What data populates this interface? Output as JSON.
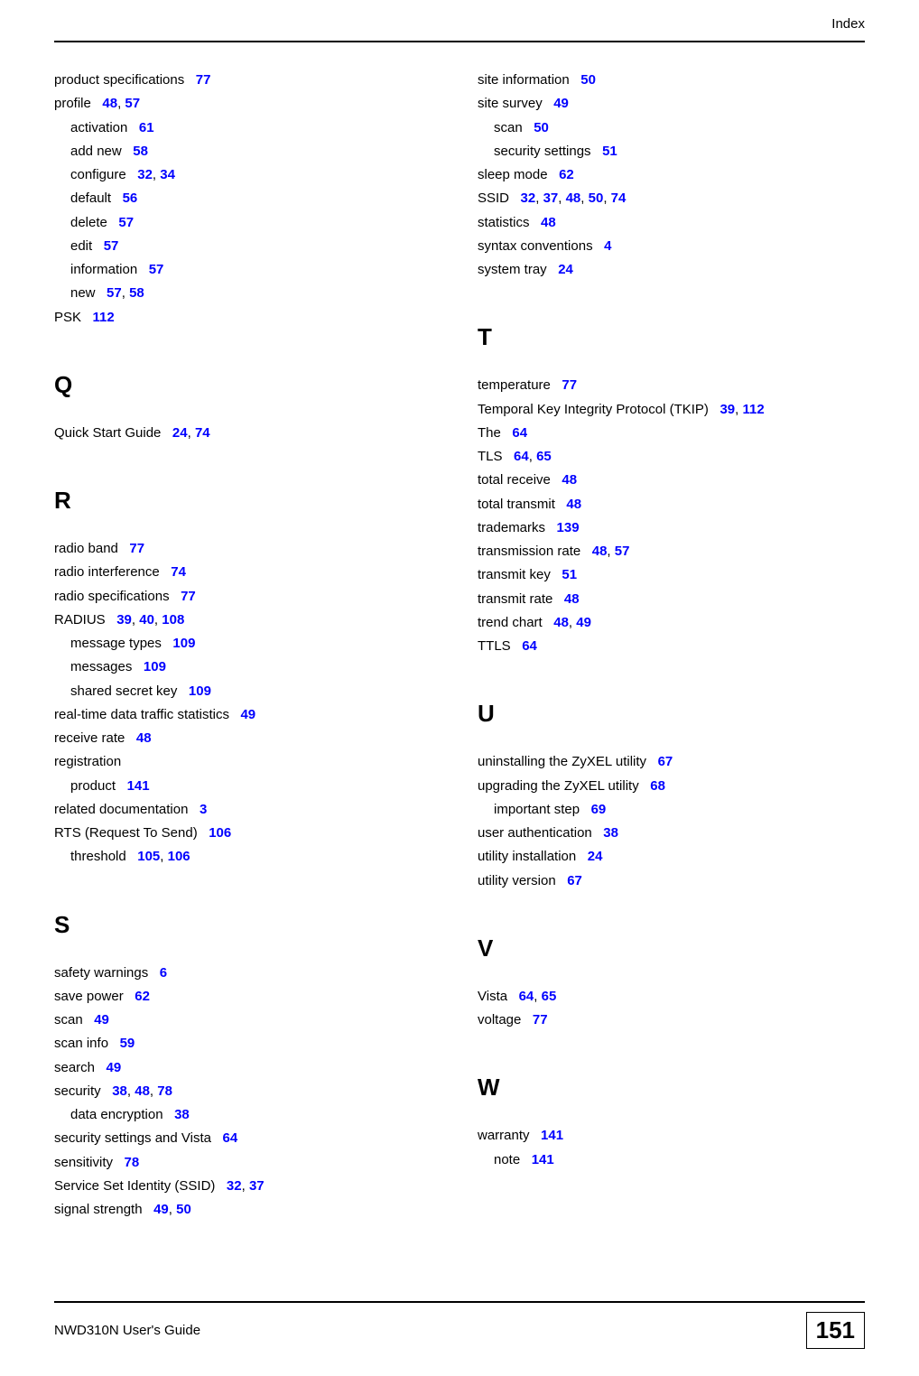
{
  "header": "Index",
  "footer": {
    "guide": "NWD310N User's Guide",
    "page": "151"
  },
  "left": [
    {
      "t": "entry",
      "text": "product specifications",
      "pages": [
        "77"
      ]
    },
    {
      "t": "entry",
      "text": "profile",
      "pages": [
        "48",
        "57"
      ]
    },
    {
      "t": "sub",
      "text": "activation",
      "pages": [
        "61"
      ]
    },
    {
      "t": "sub",
      "text": "add new",
      "pages": [
        "58"
      ]
    },
    {
      "t": "sub",
      "text": "configure",
      "pages": [
        "32",
        "34"
      ]
    },
    {
      "t": "sub",
      "text": "default",
      "pages": [
        "56"
      ]
    },
    {
      "t": "sub",
      "text": "delete",
      "pages": [
        "57"
      ]
    },
    {
      "t": "sub",
      "text": "edit",
      "pages": [
        "57"
      ]
    },
    {
      "t": "sub",
      "text": "information",
      "pages": [
        "57"
      ]
    },
    {
      "t": "sub",
      "text": "new",
      "pages": [
        "57",
        "58"
      ]
    },
    {
      "t": "entry",
      "text": "PSK",
      "pages": [
        "112"
      ]
    },
    {
      "t": "letter",
      "text": "Q"
    },
    {
      "t": "entry",
      "text": "Quick Start Guide",
      "pages": [
        "24",
        "74"
      ]
    },
    {
      "t": "letter",
      "text": "R"
    },
    {
      "t": "entry",
      "text": "radio band",
      "pages": [
        "77"
      ]
    },
    {
      "t": "entry",
      "text": "radio interference",
      "pages": [
        "74"
      ]
    },
    {
      "t": "entry",
      "text": "radio specifications",
      "pages": [
        "77"
      ]
    },
    {
      "t": "entry",
      "text": "RADIUS",
      "pages": [
        "39",
        "40",
        "108"
      ]
    },
    {
      "t": "sub",
      "text": "message types",
      "pages": [
        "109"
      ]
    },
    {
      "t": "sub",
      "text": "messages",
      "pages": [
        "109"
      ]
    },
    {
      "t": "sub",
      "text": "shared secret key",
      "pages": [
        "109"
      ]
    },
    {
      "t": "entry",
      "text": "real-time data traffic statistics",
      "pages": [
        "49"
      ]
    },
    {
      "t": "entry",
      "text": "receive rate",
      "pages": [
        "48"
      ]
    },
    {
      "t": "entry",
      "text": "registration",
      "pages": []
    },
    {
      "t": "sub",
      "text": "product",
      "pages": [
        "141"
      ]
    },
    {
      "t": "entry",
      "text": "related documentation",
      "pages": [
        "3"
      ]
    },
    {
      "t": "entry",
      "text": "RTS (Request To Send)",
      "pages": [
        "106"
      ]
    },
    {
      "t": "sub",
      "text": "threshold",
      "pages": [
        "105",
        "106"
      ]
    },
    {
      "t": "letter",
      "text": "S"
    },
    {
      "t": "entry",
      "text": "safety warnings",
      "pages": [
        "6"
      ]
    },
    {
      "t": "entry",
      "text": "save power",
      "pages": [
        "62"
      ]
    },
    {
      "t": "entry",
      "text": "scan",
      "pages": [
        "49"
      ]
    },
    {
      "t": "entry",
      "text": "scan info",
      "pages": [
        "59"
      ]
    },
    {
      "t": "entry",
      "text": "search",
      "pages": [
        "49"
      ]
    },
    {
      "t": "entry",
      "text": "security",
      "pages": [
        "38",
        "48",
        "78"
      ]
    },
    {
      "t": "sub",
      "text": "data encryption",
      "pages": [
        "38"
      ]
    },
    {
      "t": "entry",
      "text": "security settings and Vista",
      "pages": [
        "64"
      ]
    },
    {
      "t": "entry",
      "text": "sensitivity",
      "pages": [
        "78"
      ]
    },
    {
      "t": "entry",
      "text": "Service Set Identity (SSID)",
      "pages": [
        "32",
        "37"
      ]
    },
    {
      "t": "entry",
      "text": "signal strength",
      "pages": [
        "49",
        "50"
      ]
    }
  ],
  "right": [
    {
      "t": "entry",
      "text": "site information",
      "pages": [
        "50"
      ]
    },
    {
      "t": "entry",
      "text": "site survey",
      "pages": [
        "49"
      ]
    },
    {
      "t": "sub",
      "text": "scan",
      "pages": [
        "50"
      ]
    },
    {
      "t": "sub",
      "text": "security settings",
      "pages": [
        "51"
      ]
    },
    {
      "t": "entry",
      "text": "sleep mode",
      "pages": [
        "62"
      ]
    },
    {
      "t": "entry",
      "text": "SSID",
      "pages": [
        "32",
        "37",
        "48",
        "50",
        "74"
      ]
    },
    {
      "t": "entry",
      "text": "statistics",
      "pages": [
        "48"
      ]
    },
    {
      "t": "entry",
      "text": "syntax conventions",
      "pages": [
        "4"
      ]
    },
    {
      "t": "entry",
      "text": "system tray",
      "pages": [
        "24"
      ]
    },
    {
      "t": "letter",
      "text": "T"
    },
    {
      "t": "entry",
      "text": "temperature",
      "pages": [
        "77"
      ]
    },
    {
      "t": "entry",
      "text": "Temporal Key Integrity Protocol (TKIP)",
      "pages": [
        "39",
        "112"
      ]
    },
    {
      "t": "entry",
      "text": "The",
      "pages": [
        "64"
      ]
    },
    {
      "t": "entry",
      "text": "TLS",
      "pages": [
        "64",
        "65"
      ]
    },
    {
      "t": "entry",
      "text": "total receive",
      "pages": [
        "48"
      ]
    },
    {
      "t": "entry",
      "text": "total transmit",
      "pages": [
        "48"
      ]
    },
    {
      "t": "entry",
      "text": "trademarks",
      "pages": [
        "139"
      ]
    },
    {
      "t": "entry",
      "text": "transmission rate",
      "pages": [
        "48",
        "57"
      ]
    },
    {
      "t": "entry",
      "text": "transmit key",
      "pages": [
        "51"
      ]
    },
    {
      "t": "entry",
      "text": "transmit rate",
      "pages": [
        "48"
      ]
    },
    {
      "t": "entry",
      "text": "trend chart",
      "pages": [
        "48",
        "49"
      ]
    },
    {
      "t": "entry",
      "text": "TTLS",
      "pages": [
        "64"
      ]
    },
    {
      "t": "letter",
      "text": "U"
    },
    {
      "t": "entry",
      "text": "uninstalling the ZyXEL utility",
      "pages": [
        "67"
      ]
    },
    {
      "t": "entry",
      "text": "upgrading the ZyXEL utility",
      "pages": [
        "68"
      ]
    },
    {
      "t": "sub",
      "text": "important step",
      "pages": [
        "69"
      ]
    },
    {
      "t": "entry",
      "text": "user authentication",
      "pages": [
        "38"
      ]
    },
    {
      "t": "entry",
      "text": "utility installation",
      "pages": [
        "24"
      ]
    },
    {
      "t": "entry",
      "text": "utility version",
      "pages": [
        "67"
      ]
    },
    {
      "t": "letter",
      "text": "V"
    },
    {
      "t": "entry",
      "text": "Vista",
      "pages": [
        "64",
        "65"
      ]
    },
    {
      "t": "entry",
      "text": "voltage",
      "pages": [
        "77"
      ]
    },
    {
      "t": "letter",
      "text": "W"
    },
    {
      "t": "entry",
      "text": "warranty",
      "pages": [
        "141"
      ]
    },
    {
      "t": "sub",
      "text": "note",
      "pages": [
        "141"
      ]
    }
  ]
}
